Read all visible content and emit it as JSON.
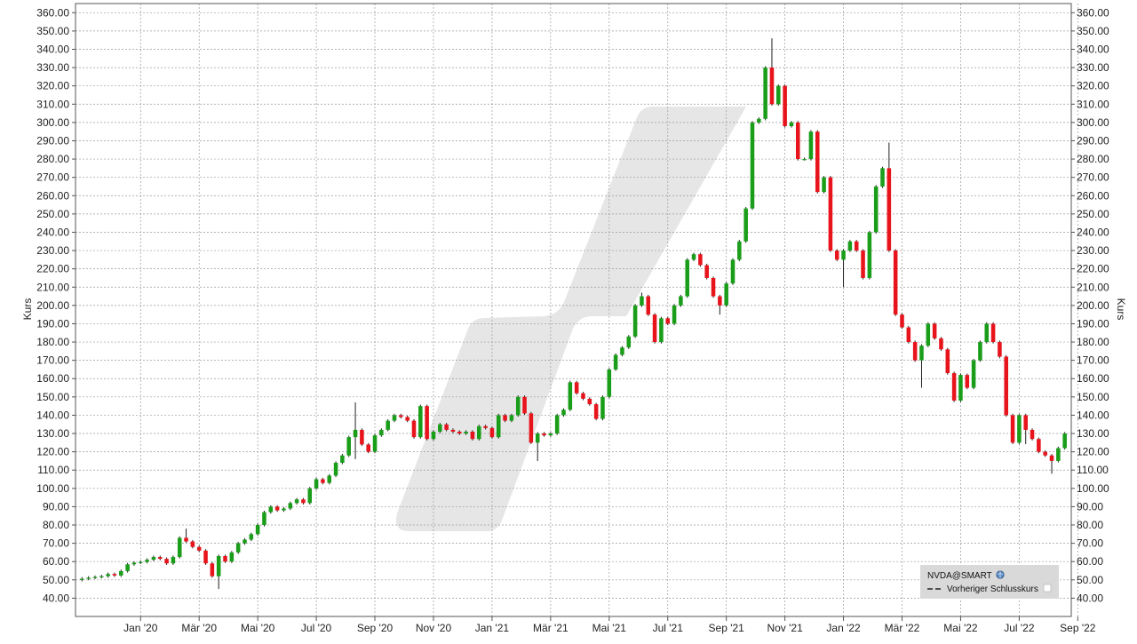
{
  "colors": {
    "up": "#1a9e1a",
    "down": "#e8141c",
    "wick": "#202020",
    "grid": "#9a9a9a",
    "background": "#ffffff",
    "watermark": "#e6e6e6",
    "legend_bg": "#d9d9d9"
  },
  "legend": {
    "symbol": "NVDA@SMART",
    "prev_close_label": "Vorheriger Schlusskurs"
  },
  "chart_data": {
    "type": "candlestick",
    "interval": "weekly",
    "ylabel_left": "Kurs",
    "ylabel_right": "Kurs",
    "ylim": [
      30,
      365
    ],
    "y_ticks": [
      40,
      50,
      60,
      70,
      80,
      90,
      100,
      110,
      120,
      130,
      140,
      150,
      160,
      170,
      180,
      190,
      200,
      210,
      220,
      230,
      240,
      250,
      260,
      270,
      280,
      290,
      300,
      310,
      320,
      330,
      340,
      350,
      360
    ],
    "y_tick_labels": [
      "40.00",
      "50.00",
      "60.00",
      "70.00",
      "80.00",
      "90.00",
      "100.00",
      "110.00",
      "120.00",
      "130.00",
      "140.00",
      "150.00",
      "160.00",
      "170.00",
      "180.00",
      "190.00",
      "200.00",
      "210.00",
      "220.00",
      "230.00",
      "240.00",
      "250.00",
      "260.00",
      "270.00",
      "280.00",
      "290.00",
      "300.00",
      "310.00",
      "320.00",
      "330.00",
      "340.00",
      "350.00",
      "360.00"
    ],
    "x_ticks": [
      {
        "label": "Jan '20",
        "index": 9
      },
      {
        "label": "Mär '20",
        "index": 18
      },
      {
        "label": "Mai '20",
        "index": 27
      },
      {
        "label": "Jul '20",
        "index": 36
      },
      {
        "label": "Sep '20",
        "index": 45
      },
      {
        "label": "Nov '20",
        "index": 54
      },
      {
        "label": "Jan '21",
        "index": 63
      },
      {
        "label": "Mär '21",
        "index": 72
      },
      {
        "label": "Mai '21",
        "index": 81
      },
      {
        "label": "Jul '21",
        "index": 90
      },
      {
        "label": "Sep '21",
        "index": 99
      },
      {
        "label": "Nov '21",
        "index": 108
      },
      {
        "label": "Jan '22",
        "index": 117
      },
      {
        "label": "Mär '22",
        "index": 126
      },
      {
        "label": "Mai '22",
        "index": 135
      },
      {
        "label": "Jul '22",
        "index": 144
      },
      {
        "label": "Sep '22",
        "index": 153
      }
    ],
    "grid": true,
    "legend_position": "bottom-right",
    "close": [
      50.6,
      51.2,
      51.6,
      52.0,
      53.2,
      52.4,
      54.8,
      58.5,
      59.4,
      59.8,
      61.0,
      62.5,
      61.5,
      59.0,
      62.5,
      73.0,
      71.0,
      68.0,
      66.0,
      59.0,
      52.0,
      63.0,
      60.0,
      65.0,
      70.0,
      72.0,
      75.0,
      80.0,
      87.0,
      90.0,
      88.0,
      89.0,
      92.0,
      94.0,
      92.0,
      100.0,
      105.0,
      103.0,
      107.0,
      114.0,
      118.0,
      128.0,
      132.0,
      124.0,
      120.0,
      129.0,
      132.0,
      137.0,
      140.0,
      139.0,
      137.0,
      128.0,
      145.0,
      127.0,
      131.0,
      135.0,
      132.0,
      131.0,
      130.0,
      131.0,
      127.0,
      134.0,
      133.0,
      128.0,
      140.0,
      137.0,
      140.0,
      150.0,
      141.0,
      125.0,
      130.0,
      129.0,
      130.0,
      140.0,
      143.0,
      158.0,
      152.0,
      149.0,
      146.0,
      138.0,
      150.0,
      165.0,
      173.0,
      177.0,
      183.0,
      200.0,
      205.0,
      195.0,
      180.0,
      193.0,
      190.0,
      200.0,
      205.0,
      225.0,
      228.0,
      222.0,
      215.0,
      205.0,
      200.0,
      212.0,
      225.0,
      235.0,
      253.0,
      300.0,
      302.0,
      330.0,
      310.0,
      320.0,
      298.0,
      300.0,
      280.0,
      280.0,
      295.0,
      262.0,
      270.0,
      230.0,
      225.0,
      230.0,
      235.0,
      230.0,
      215.0,
      240.0,
      265.0,
      275.0,
      230.0,
      195.0,
      188.0,
      180.0,
      170.0,
      178.0,
      190.0,
      182.0,
      176.0,
      163.0,
      148.0,
      162.0,
      155.0,
      170.0,
      180.0,
      190.0,
      180.0,
      172.0,
      140.0,
      125.0,
      140.0,
      132.0,
      127.0,
      120.0,
      118.0,
      115.0,
      122.0,
      130.0
    ],
    "open": [
      50.0,
      50.6,
      51.2,
      51.6,
      52.0,
      53.2,
      52.4,
      54.8,
      58.5,
      59.4,
      59.8,
      61.0,
      62.5,
      61.5,
      59.0,
      62.5,
      73.0,
      71.0,
      68.0,
      66.0,
      59.0,
      52.0,
      63.0,
      60.0,
      65.0,
      70.0,
      72.0,
      75.0,
      80.0,
      87.0,
      90.0,
      88.0,
      89.0,
      92.0,
      94.0,
      92.0,
      100.0,
      105.0,
      103.0,
      107.0,
      114.0,
      118.0,
      128.0,
      132.0,
      124.0,
      120.0,
      129.0,
      132.0,
      137.0,
      140.0,
      139.0,
      137.0,
      128.0,
      145.0,
      127.0,
      131.0,
      135.0,
      132.0,
      131.0,
      130.0,
      131.0,
      127.0,
      134.0,
      133.0,
      128.0,
      140.0,
      137.0,
      140.0,
      150.0,
      141.0,
      125.0,
      130.0,
      129.0,
      130.0,
      140.0,
      143.0,
      158.0,
      152.0,
      149.0,
      146.0,
      138.0,
      150.0,
      165.0,
      173.0,
      177.0,
      183.0,
      200.0,
      205.0,
      195.0,
      180.0,
      193.0,
      190.0,
      200.0,
      205.0,
      225.0,
      228.0,
      222.0,
      215.0,
      205.0,
      200.0,
      212.0,
      225.0,
      235.0,
      253.0,
      300.0,
      302.0,
      330.0,
      310.0,
      320.0,
      298.0,
      300.0,
      280.0,
      280.0,
      295.0,
      262.0,
      270.0,
      230.0,
      225.0,
      230.0,
      235.0,
      230.0,
      215.0,
      240.0,
      265.0,
      275.0,
      230.0,
      195.0,
      188.0,
      180.0,
      170.0,
      178.0,
      190.0,
      182.0,
      176.0,
      163.0,
      148.0,
      162.0,
      155.0,
      170.0,
      180.0,
      190.0,
      180.0,
      172.0,
      140.0,
      125.0,
      140.0,
      132.0,
      127.0,
      120.0,
      118.0,
      115.0,
      122.0
    ],
    "high": [
      51.5,
      52.0,
      52.4,
      52.8,
      54.0,
      54.0,
      55.6,
      59.3,
      60.2,
      60.6,
      61.8,
      63.3,
      63.3,
      62.3,
      63.3,
      73.8,
      78.0,
      71.8,
      68.8,
      66.8,
      59.8,
      63.8,
      63.8,
      65.8,
      70.8,
      72.8,
      75.8,
      80.8,
      87.8,
      90.8,
      90.8,
      89.8,
      92.8,
      94.8,
      94.8,
      100.8,
      105.8,
      105.8,
      107.8,
      114.8,
      118.8,
      128.8,
      147.0,
      132.8,
      124.8,
      129.8,
      132.8,
      137.8,
      140.8,
      140.8,
      139.8,
      137.8,
      145.8,
      145.8,
      131.8,
      135.8,
      135.8,
      132.8,
      131.8,
      131.8,
      131.8,
      134.8,
      134.8,
      133.8,
      140.8,
      140.8,
      140.8,
      150.8,
      150.8,
      141.8,
      130.8,
      130.8,
      130.8,
      140.8,
      143.8,
      158.8,
      158.8,
      152.8,
      149.8,
      146.8,
      150.8,
      165.8,
      173.8,
      177.8,
      183.8,
      200.8,
      207.0,
      205.8,
      195.8,
      193.8,
      193.8,
      200.8,
      205.8,
      225.8,
      228.8,
      228.8,
      222.8,
      215.8,
      205.8,
      212.8,
      225.8,
      235.8,
      253.8,
      300.8,
      302.8,
      330.8,
      346.0,
      320.8,
      320.8,
      300.8,
      300.8,
      280.8,
      295.8,
      295.8,
      270.8,
      270.8,
      230.8,
      230.8,
      235.8,
      235.8,
      230.8,
      240.8,
      265.8,
      275.8,
      289.0,
      230.8,
      195.8,
      188.8,
      180.8,
      178.8,
      190.8,
      190.8,
      182.8,
      176.8,
      163.8,
      162.8,
      162.8,
      170.8,
      180.8,
      190.8,
      190.8,
      180.8,
      172.8,
      140.8,
      140.8,
      140.8,
      132.8,
      127.8,
      120.8,
      118.8,
      122.8,
      130.8
    ],
    "low": [
      49.2,
      49.8,
      50.4,
      50.8,
      51.2,
      51.6,
      51.6,
      54.0,
      57.7,
      58.6,
      59.0,
      60.2,
      60.7,
      58.2,
      58.2,
      61.7,
      70.2,
      67.2,
      65.2,
      58.2,
      51.2,
      45.0,
      59.2,
      59.2,
      64.2,
      69.2,
      71.2,
      74.2,
      79.2,
      86.2,
      87.2,
      87.2,
      88.2,
      91.2,
      91.2,
      91.2,
      99.2,
      102.2,
      102.2,
      106.2,
      113.2,
      117.2,
      116.0,
      123.2,
      119.2,
      119.2,
      128.2,
      131.2,
      136.2,
      138.2,
      136.2,
      127.2,
      127.2,
      126.2,
      126.2,
      130.2,
      131.2,
      130.2,
      129.2,
      129.2,
      126.2,
      126.2,
      132.2,
      127.2,
      127.2,
      136.2,
      136.2,
      139.2,
      140.2,
      124.2,
      115.0,
      128.2,
      128.2,
      129.2,
      139.2,
      142.2,
      151.2,
      148.2,
      145.2,
      137.2,
      137.2,
      149.2,
      164.2,
      172.2,
      176.2,
      182.2,
      199.2,
      194.2,
      179.2,
      179.2,
      189.2,
      189.2,
      199.2,
      204.2,
      224.2,
      221.2,
      214.2,
      204.2,
      195.0,
      199.2,
      211.2,
      224.2,
      234.2,
      252.2,
      299.2,
      301.2,
      309.2,
      309.2,
      297.2,
      297.2,
      279.2,
      279.2,
      279.2,
      261.2,
      261.2,
      229.2,
      224.2,
      210.0,
      229.2,
      229.2,
      214.2,
      214.2,
      239.2,
      264.2,
      229.2,
      194.2,
      187.2,
      179.2,
      169.2,
      155.0,
      177.2,
      181.2,
      175.2,
      162.2,
      147.2,
      147.2,
      154.2,
      154.2,
      169.2,
      179.2,
      179.2,
      171.2,
      139.2,
      124.2,
      124.2,
      124.2,
      126.2,
      119.2,
      117.2,
      108.0,
      114.2,
      121.2
    ]
  }
}
